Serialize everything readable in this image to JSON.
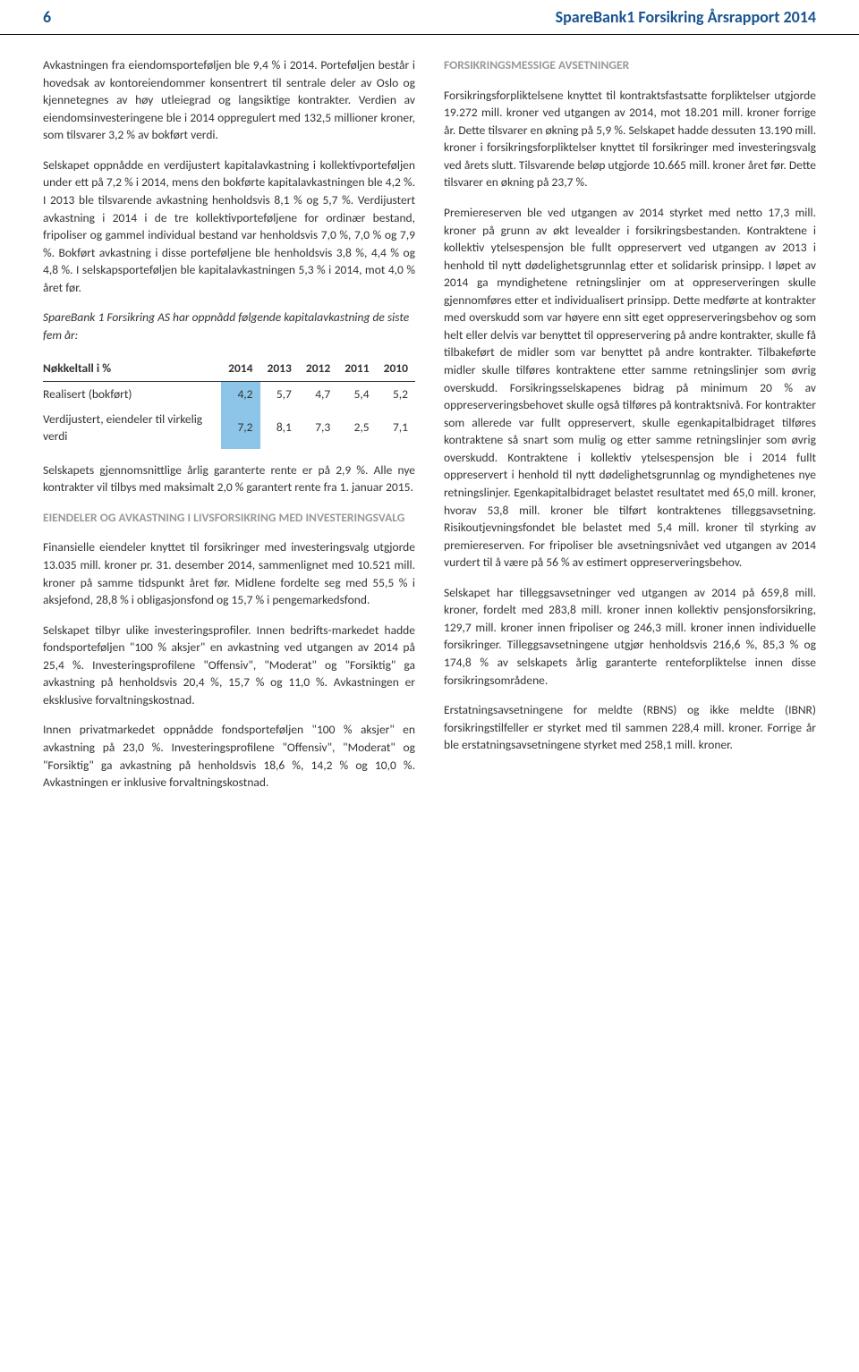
{
  "header": {
    "pageNumber": "6",
    "title": "SpareBank1 Forsikring Årsrapport 2014"
  },
  "leftColumn": {
    "para1": "Avkastningen fra eiendomsporteføljen ble 9,4 % i 2014. Porteføljen består i hovedsak av kontoreiendommer konsentrert til sentrale deler av Oslo og kjennetegnes av høy utleiegrad og langsiktige kontrakter. Verdien av eiendomsinvesteringene ble i 2014 oppregulert med 132,5 millioner kroner, som tilsvarer 3,2 % av bokført verdi.",
    "para2": "Selskapet oppnådde en verdijustert kapitalavkastning i kollektivporteføljen under ett på 7,2 % i 2014, mens den bokførte kapitalavkastningen ble 4,2 %. I 2013 ble tilsvarende avkastning henholdsvis 8,1 % og 5,7 %. Verdijustert avkastning i 2014 i de tre kollektivporteføljene for ordinær bestand, fripoliser og gammel individual bestand var henholdsvis 7,0 %, 7,0 % og 7,9 %. Bokført avkastning i disse porteføljene ble henholdsvis 3,8 %, 4,4 % og 4,8 %. I selskapsporteføljen ble kapitalavkastningen 5,3 % i 2014, mot 4,0 % året før.",
    "italicHeading": "SpareBank 1 Forsikring AS har oppnådd følgende kapitalavkastning de siste fem år:",
    "tableHeader": {
      "col1": "Nøkkeltall i %",
      "col2": "2014",
      "col3": "2013",
      "col4": "2012",
      "col5": "2011",
      "col6": "2010"
    },
    "tableRows": [
      {
        "label": "Realisert (bokført)",
        "v2014": "4,2",
        "v2013": "5,7",
        "v2012": "4,7",
        "v2011": "5,4",
        "v2010": "5,2"
      },
      {
        "label": "Verdijustert, eiendeler til virkelig verdi",
        "v2014": "7,2",
        "v2013": "8,1",
        "v2012": "7,3",
        "v2011": "2,5",
        "v2010": "7,1"
      }
    ],
    "para3": "Selskapets gjennomsnittlige årlig garanterte rente er på 2,9 %. Alle nye kontrakter vil tilbys med maksimalt 2,0 % garantert rente fra 1. januar 2015.",
    "heading1": "EIENDELER OG AVKASTNING I LIVSFORSIKRING MED INVESTERINGSVALG",
    "para4": "Finansielle eiendeler knyttet til forsikringer med investeringsvalg utgjorde 13.035 mill. kroner pr. 31. desember 2014, sammenlignet med 10.521 mill. kroner på samme tidspunkt året før. Midlene fordelte seg med 55,5 % i aksjefond, 28,8 % i obligasjonsfond og 15,7 % i pengemarkedsfond.",
    "para5": "Selskapet tilbyr ulike investeringsprofiler. Innen bedrifts-markedet hadde fondsporteføljen \"100 % aksjer\" en avkastning ved utgangen av 2014 på 25,4 %. Investeringsprofilene \"Offensiv\", \"Moderat\" og \"Forsiktig\" ga avkastning på henholdsvis 20,4 %, 15,7 % og 11,0 %. Avkastningen er eksklusive forvaltningskostnad.",
    "para6": "Innen privatmarkedet oppnådde fondsporteføljen \"100 % aksjer\" en avkastning på 23,0 %. Investeringsprofilene \"Offensiv\", \"Moderat\" og \"Forsiktig\" ga avkastning på henholdsvis 18,6 %, 14,2 % og 10,0 %. Avkastningen er inklusive forvaltningskostnad."
  },
  "rightColumn": {
    "heading1": "FORSIKRINGSMESSIGE AVSETNINGER",
    "para1": "Forsikringsforpliktelsene knyttet til kontraktsfastsatte forpliktelser utgjorde 19.272 mill. kroner ved utgangen av 2014, mot 18.201 mill. kroner forrige år. Dette tilsvarer en økning på 5,9 %. Selskapet hadde dessuten 13.190 mill. kroner i forsikringsforpliktelser knyttet til forsikringer med investeringsvalg ved årets slutt. Tilsvarende beløp utgjorde 10.665 mill. kroner året før. Dette tilsvarer en økning på 23,7 %.",
    "para2": "Premiereserven ble ved utgangen av 2014 styrket med netto 17,3 mill. kroner på grunn av økt levealder i forsikringsbestanden. Kontraktene i kollektiv ytelsespensjon ble fullt oppreservert ved utgangen av 2013 i henhold til nytt dødelighetsgrunnlag etter et solidarisk prinsipp. I løpet av 2014 ga myndighetene retningslinjer om at oppreserveringen skulle gjennomføres etter et individualisert prinsipp. Dette medførte at kontrakter med overskudd som var høyere enn sitt eget oppreserveringsbehov og som helt eller delvis var benyttet til oppreservering på andre kontrakter, skulle få tilbakeført de midler som var benyttet på andre kontrakter. Tilbakeførte midler skulle tilføres kontraktene etter samme retningslinjer som øvrig overskudd. Forsikringsselskapenes bidrag på minimum 20 % av oppreserveringsbehovet skulle også tilføres på kontraktsnivå. For kontrakter som allerede var fullt oppreservert, skulle egenkapitalbidraget tilføres kontraktene så snart som mulig og etter samme retningslinjer som øvrig overskudd. Kontraktene i kollektiv ytelsespensjon ble i 2014 fullt oppreservert i henhold til nytt dødelighetsgrunnlag og myndighetenes nye retningslinjer. Egenkapitalbidraget belastet resultatet med 65,0 mill. kroner, hvorav 53,8 mill. kroner ble tilført kontraktenes tilleggsavsetning. Risikoutjevningsfondet ble belastet med 5,4 mill. kroner til styrking av premiereserven. For fripoliser ble avsetningsnivået ved utgangen av 2014 vurdert til å være på 56 % av estimert oppreserveringsbehov.",
    "para3": "Selskapet har tilleggsavsetninger ved utgangen av 2014 på 659,8 mill. kroner, fordelt med 283,8 mill. kroner innen kollektiv pensjonsforsikring, 129,7 mill. kroner innen fripoliser og 246,3 mill. kroner innen individuelle forsikringer. Tilleggsavsetningene utgjør henholdsvis 216,6 %, 85,3 % og 174,8 % av selskapets årlig garanterte renteforpliktelse innen disse forsikringsområdene.",
    "para4": "Erstatningsavsetningene for meldte (RBNS) og ikke meldte (IBNR) forsikringstilfeller er styrket med til sammen 228,4 mill. kroner. Forrige år ble erstatningsavsetningene styrket med 258,1 mill. kroner."
  },
  "styles": {
    "highlightColor": "#8cc5e8",
    "headerColor": "#1a5490",
    "sectionHeadingColor": "#999999",
    "textColor": "#333333"
  }
}
